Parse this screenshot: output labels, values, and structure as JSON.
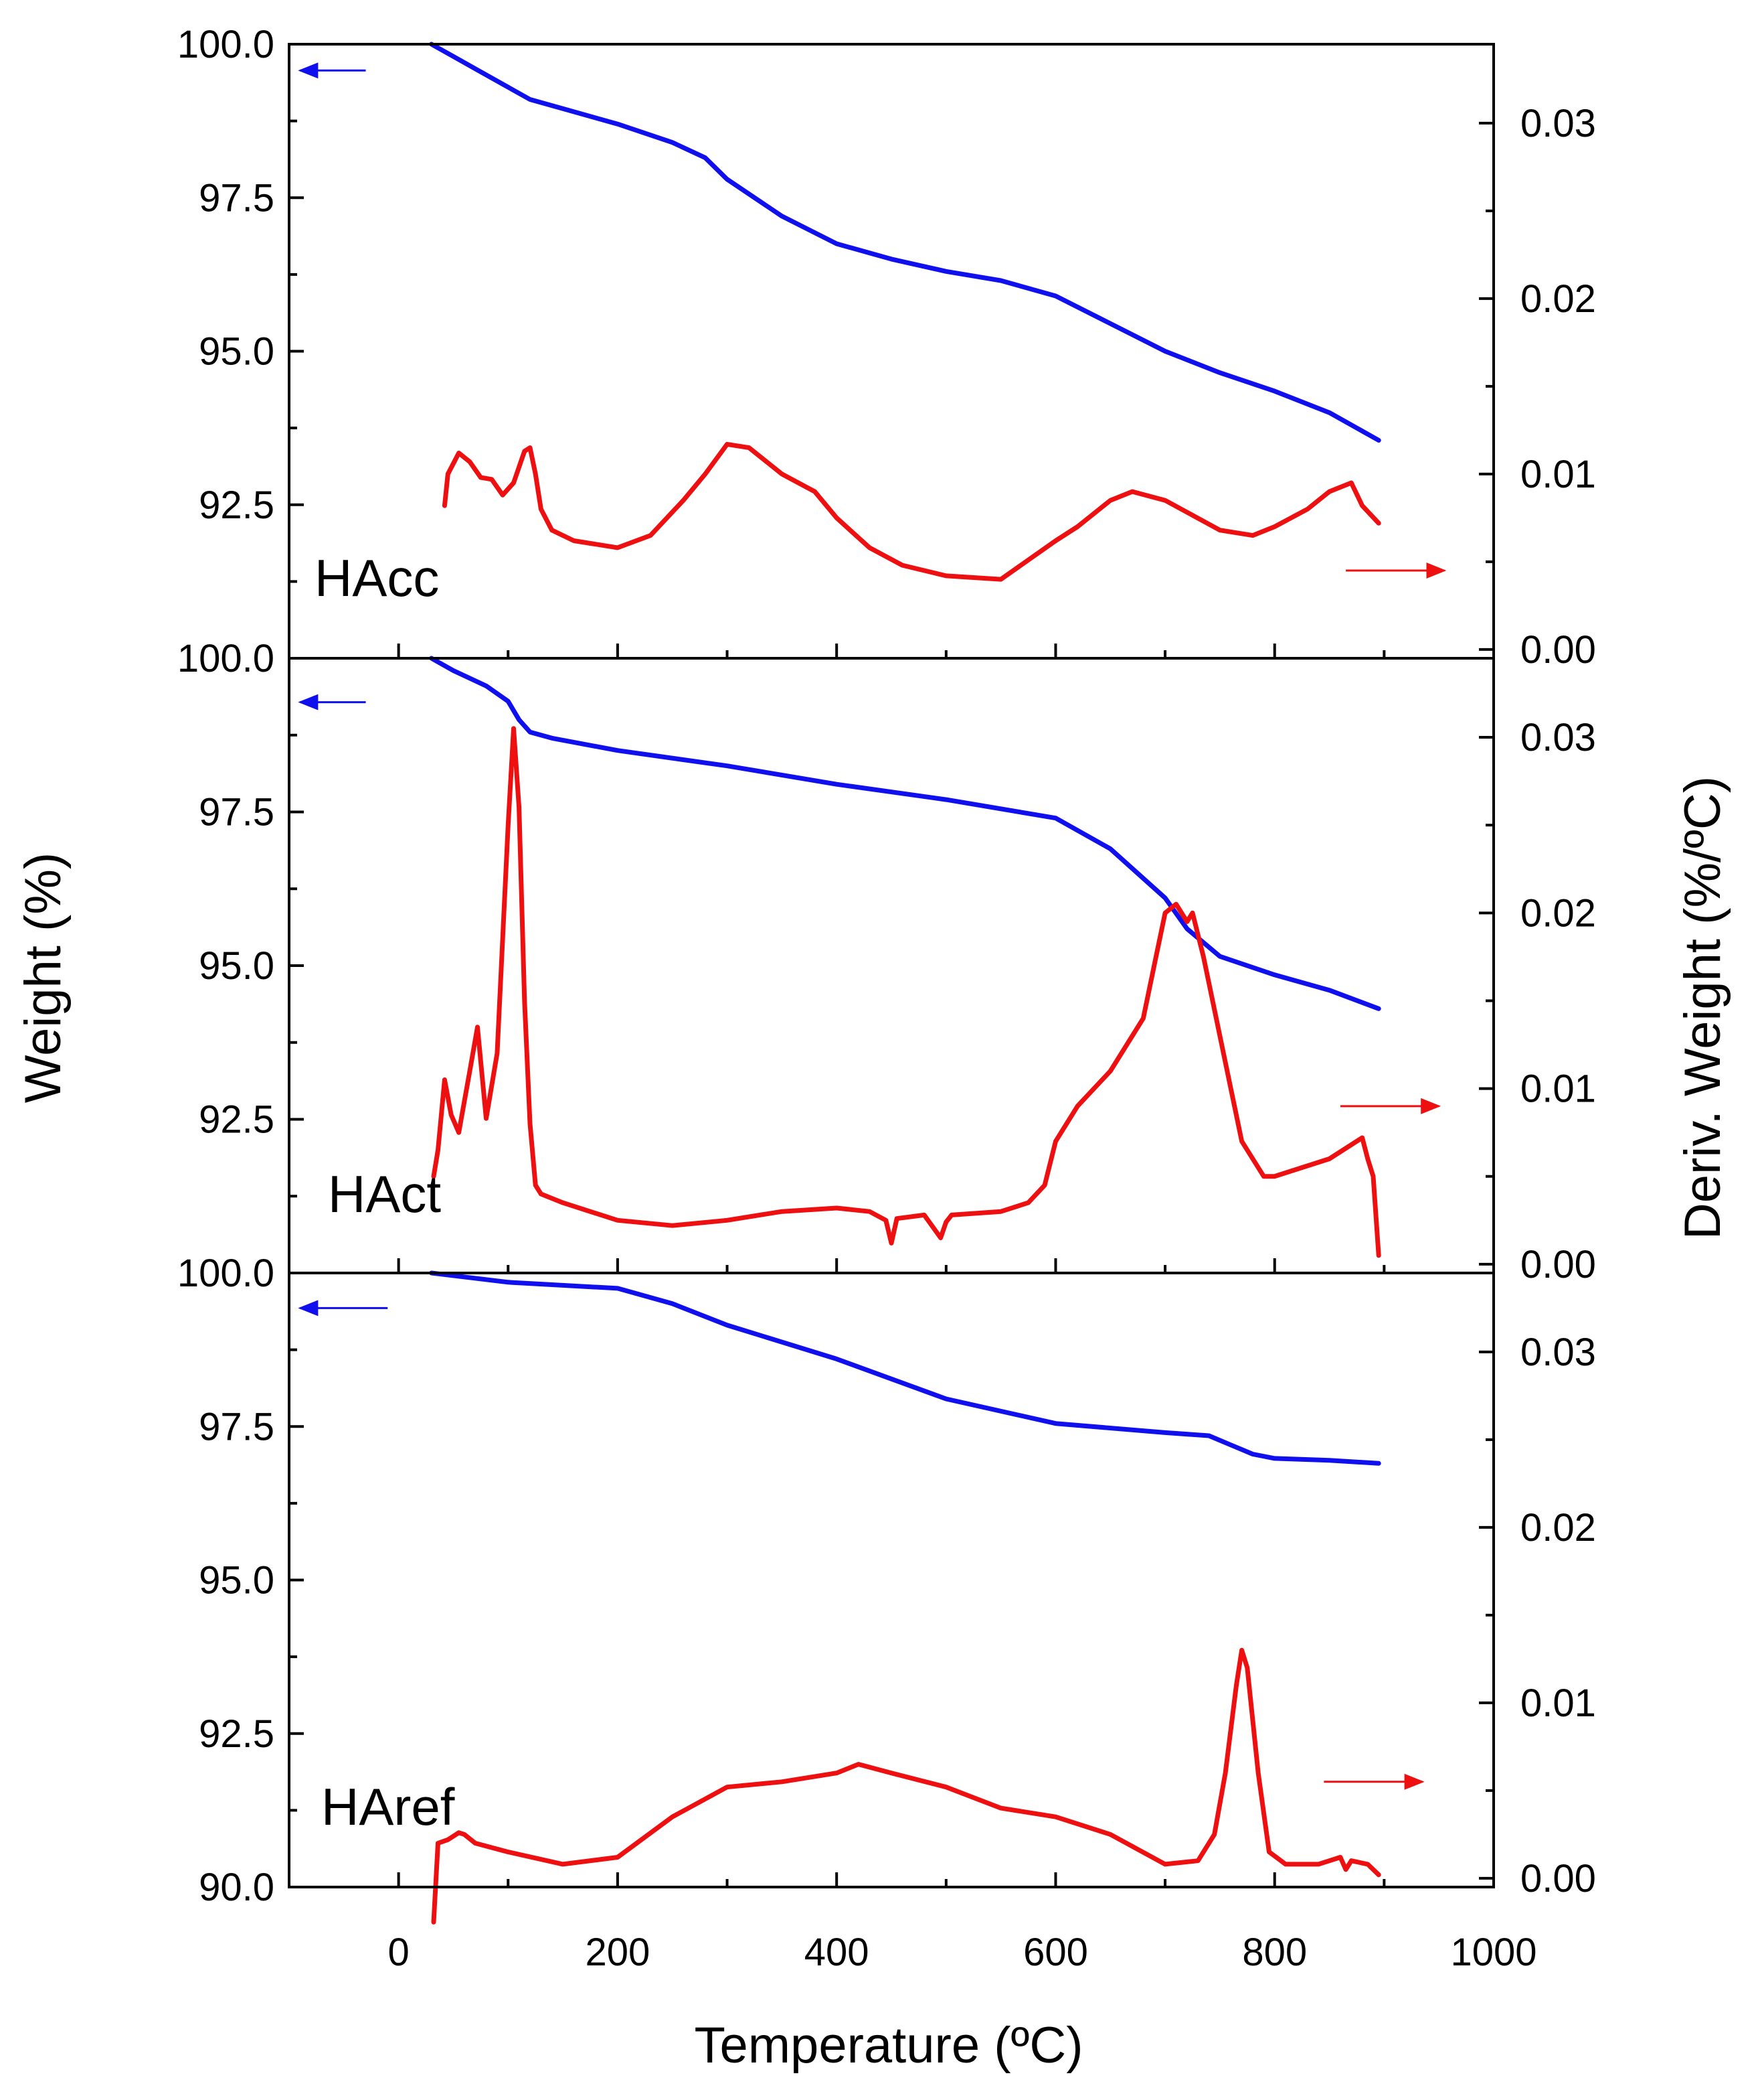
{
  "chart_data": {
    "type": "line",
    "layout": "three stacked panels sharing a temperature x-axis, twin y-axes",
    "xlabel": "Temperature (ºC)",
    "ylabel_left": "Weight (%)",
    "ylabel_right": "Deriv. Weight (%/ºC)",
    "xlim": [
      -100,
      1000
    ],
    "x_ticks": [
      0,
      200,
      400,
      600,
      800,
      1000
    ],
    "x_tick_labels": [
      "0",
      "200",
      "400",
      "600",
      "800",
      "1000"
    ],
    "colors": {
      "weight": "#1010ee",
      "derivative": "#ee1010",
      "axes": "#000000"
    },
    "panels": [
      {
        "label": "HAcc",
        "ylim_left": [
          90.0,
          100.0
        ],
        "left_ticks": [
          92.5,
          95.0,
          97.5,
          100.0
        ],
        "left_tick_labels": [
          "92.5",
          "95.0",
          "97.5",
          "100.0"
        ],
        "ylim_right": [
          -0.0005,
          0.0345
        ],
        "right_ticks": [
          0.0,
          0.01,
          0.02,
          0.03
        ],
        "right_tick_labels": [
          "0.00",
          "0.01",
          "0.02",
          "0.03"
        ],
        "arrows": [
          {
            "series": "weight",
            "points_to": "left axis",
            "from_x": -30,
            "to_x": -90,
            "y": 0.033
          },
          {
            "series": "derivative",
            "points_to": "right axis",
            "from_x": 865,
            "to_x": 955,
            "y": 0.0045
          }
        ],
        "series": [
          {
            "name": "Weight",
            "axis": "left",
            "x": [
              30,
              50,
              75,
              100,
              120,
              150,
              200,
              250,
              280,
              300,
              350,
              400,
              450,
              500,
              550,
              600,
              650,
              700,
              750,
              800,
              850,
              895
            ],
            "y": [
              100.0,
              99.8,
              99.55,
              99.3,
              99.1,
              98.95,
              98.7,
              98.4,
              98.15,
              97.8,
              97.2,
              96.75,
              96.5,
              96.3,
              96.15,
              95.9,
              95.45,
              95.0,
              94.65,
              94.35,
              94.0,
              93.55
            ]
          },
          {
            "name": "Deriv. Weight",
            "axis": "right",
            "x": [
              42,
              45,
              55,
              65,
              75,
              85,
              95,
              105,
              115,
              120,
              125,
              130,
              140,
              160,
              200,
              230,
              260,
              280,
              300,
              320,
              350,
              380,
              400,
              430,
              460,
              500,
              550,
              600,
              620,
              650,
              670,
              700,
              750,
              780,
              800,
              830,
              850,
              870,
              880,
              895
            ],
            "y": [
              0.0082,
              0.01,
              0.0112,
              0.0107,
              0.0098,
              0.0097,
              0.0088,
              0.0095,
              0.0113,
              0.0115,
              0.01,
              0.008,
              0.0068,
              0.0062,
              0.0058,
              0.0065,
              0.0085,
              0.01,
              0.0117,
              0.0115,
              0.01,
              0.009,
              0.0075,
              0.0058,
              0.0048,
              0.0042,
              0.004,
              0.0062,
              0.007,
              0.0085,
              0.009,
              0.0085,
              0.0068,
              0.0065,
              0.007,
              0.008,
              0.009,
              0.0095,
              0.0082,
              0.0072
            ]
          }
        ]
      },
      {
        "label": "HAct",
        "ylim_left": [
          90.0,
          100.0
        ],
        "left_ticks": [
          92.5,
          95.0,
          97.5,
          100.0
        ],
        "left_tick_labels": [
          "92.5",
          "95.0",
          "97.5",
          "100.0"
        ],
        "ylim_right": [
          -0.0005,
          0.0345
        ],
        "right_ticks": [
          0.0,
          0.01,
          0.02,
          0.03
        ],
        "right_tick_labels": [
          "0.00",
          "0.01",
          "0.02",
          "0.03"
        ],
        "arrows": [
          {
            "series": "weight",
            "points_to": "left axis",
            "from_x": -30,
            "to_x": -90,
            "y": 0.032
          },
          {
            "series": "derivative",
            "points_to": "right axis",
            "from_x": 860,
            "to_x": 950,
            "y": 0.009
          }
        ],
        "series": [
          {
            "name": "Weight",
            "axis": "left",
            "x": [
              30,
              50,
              80,
              100,
              110,
              120,
              140,
              200,
              300,
              400,
              500,
              600,
              650,
              700,
              720,
              750,
              800,
              850,
              895
            ],
            "y": [
              100.0,
              99.8,
              99.55,
              99.3,
              99.0,
              98.8,
              98.7,
              98.5,
              98.25,
              97.95,
              97.7,
              97.4,
              96.9,
              96.1,
              95.6,
              95.15,
              94.85,
              94.6,
              94.3
            ]
          },
          {
            "name": "Deriv. Weight",
            "axis": "right",
            "x": [
              32,
              36,
              42,
              48,
              55,
              65,
              72,
              80,
              90,
              100,
              105,
              110,
              115,
              120,
              125,
              130,
              150,
              200,
              250,
              300,
              350,
              400,
              430,
              445,
              450,
              455,
              480,
              495,
              500,
              505,
              550,
              575,
              590,
              600,
              620,
              650,
              680,
              690,
              700,
              710,
              720,
              725,
              735,
              750,
              770,
              790,
              800,
              850,
              880,
              885,
              890,
              895
            ],
            "y": [
              0.005,
              0.0065,
              0.0105,
              0.0085,
              0.0075,
              0.011,
              0.0135,
              0.0083,
              0.012,
              0.025,
              0.0305,
              0.026,
              0.015,
              0.008,
              0.0045,
              0.004,
              0.0035,
              0.0025,
              0.0022,
              0.0025,
              0.003,
              0.0032,
              0.003,
              0.0025,
              0.0012,
              0.0026,
              0.0028,
              0.0015,
              0.0024,
              0.0028,
              0.003,
              0.0035,
              0.0045,
              0.007,
              0.009,
              0.011,
              0.014,
              0.017,
              0.02,
              0.0205,
              0.0195,
              0.02,
              0.0175,
              0.013,
              0.007,
              0.005,
              0.005,
              0.006,
              0.0072,
              0.006,
              0.005,
              0.0005
            ]
          }
        ]
      },
      {
        "label": "HAref",
        "ylim_left": [
          90.0,
          100.0
        ],
        "left_ticks": [
          90.0,
          92.5,
          95.0,
          97.5,
          100.0
        ],
        "left_tick_labels": [
          "90.0",
          "92.5",
          "95.0",
          "97.5",
          "100.0"
        ],
        "ylim_right": [
          -0.0005,
          0.0345
        ],
        "right_ticks": [
          0.0,
          0.01,
          0.02,
          0.03
        ],
        "right_tick_labels": [
          "0.00",
          "0.01",
          "0.02",
          "0.03"
        ],
        "arrows": [
          {
            "series": "weight",
            "points_to": "left axis",
            "from_x": -10,
            "to_x": -90,
            "y": 0.0325
          },
          {
            "series": "derivative",
            "points_to": "right axis",
            "from_x": 845,
            "to_x": 935,
            "y": 0.0055
          }
        ],
        "series": [
          {
            "name": "Weight",
            "axis": "left",
            "x": [
              30,
              100,
              200,
              250,
              300,
              400,
              500,
              600,
              700,
              740,
              760,
              780,
              800,
              850,
              895
            ],
            "y": [
              100.0,
              99.85,
              99.75,
              99.5,
              99.15,
              98.6,
              97.95,
              97.55,
              97.4,
              97.35,
              97.2,
              97.05,
              96.98,
              96.95,
              96.9
            ]
          },
          {
            "name": "Deriv. Weight",
            "axis": "right",
            "x": [
              32,
              36,
              45,
              55,
              60,
              70,
              100,
              150,
              200,
              250,
              300,
              350,
              400,
              420,
              450,
              500,
              550,
              600,
              650,
              700,
              730,
              745,
              755,
              765,
              770,
              775,
              785,
              795,
              810,
              840,
              860,
              865,
              870,
              885,
              895
            ],
            "y": [
              -0.0025,
              0.002,
              0.0022,
              0.0026,
              0.0025,
              0.002,
              0.0015,
              0.0008,
              0.0012,
              0.0035,
              0.0052,
              0.0055,
              0.006,
              0.0065,
              0.006,
              0.0052,
              0.004,
              0.0035,
              0.0025,
              0.0008,
              0.001,
              0.0025,
              0.006,
              0.011,
              0.013,
              0.012,
              0.006,
              0.0015,
              0.0008,
              0.0008,
              0.0012,
              0.0005,
              0.001,
              0.0008,
              0.0002
            ]
          }
        ]
      }
    ]
  }
}
